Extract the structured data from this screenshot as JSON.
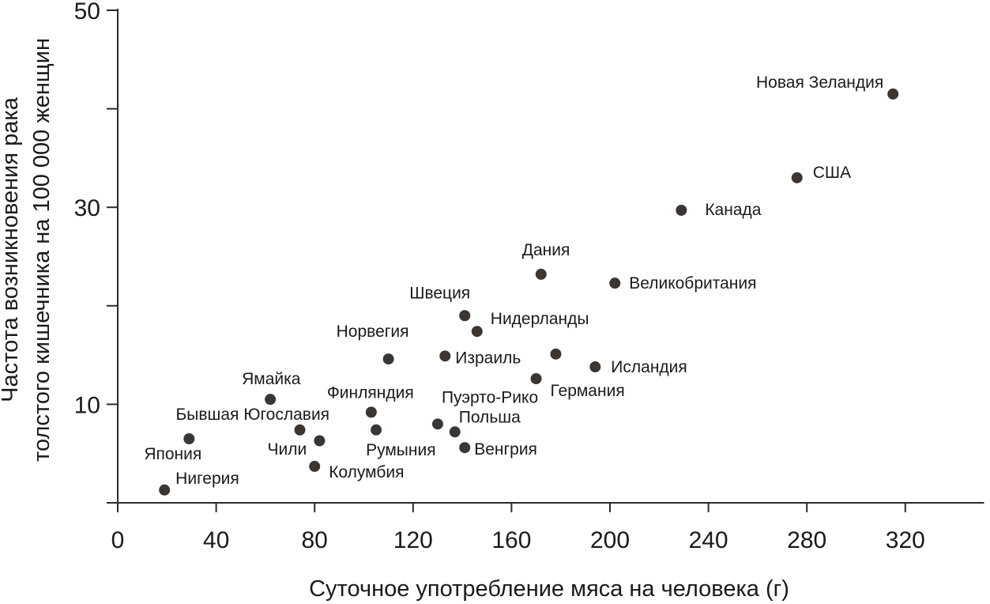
{
  "chart_data": {
    "type": "scatter",
    "xlabel": "Суточное употребление мяса на человека (г)",
    "ylabel_lines": [
      "Частота возникновения рака",
      "толстого кишечника на 100 000 женщин"
    ],
    "xlim": [
      0,
      352
    ],
    "ylim": [
      0,
      50
    ],
    "xticks": [
      0,
      40,
      80,
      120,
      160,
      200,
      240,
      280,
      320
    ],
    "yticks": [
      10,
      30,
      50
    ],
    "ytick_marks": [
      0,
      10,
      20,
      30,
      40,
      50
    ],
    "grid": false,
    "points": [
      {
        "label": "Новая Зеландия",
        "x": 315,
        "y": 41.5
      },
      {
        "label": "США",
        "x": 276,
        "y": 33
      },
      {
        "label": "Канада",
        "x": 229,
        "y": 29.7
      },
      {
        "label": "Дания",
        "x": 172,
        "y": 23.2
      },
      {
        "label": "Великобритания",
        "x": 202,
        "y": 22.3
      },
      {
        "label": "Швеция",
        "x": 141,
        "y": 19
      },
      {
        "label": "Нидерланды",
        "x": 146,
        "y": 17.4
      },
      {
        "label": "Норвегия",
        "x": 110,
        "y": 14.6
      },
      {
        "label": "Израиль",
        "x": 133,
        "y": 14.9
      },
      {
        "label": "Исландия",
        "x": 194,
        "y": 13.8
      },
      {
        "label": "Германия",
        "x": 170,
        "y": 12.6
      },
      {
        "label": "",
        "x": 178,
        "y": 15.1
      },
      {
        "label": "Ямайка",
        "x": 62,
        "y": 10.5
      },
      {
        "label": "Финляндия",
        "x": 103,
        "y": 9.2
      },
      {
        "label": "Пуэрто-Рико",
        "x": 130,
        "y": 8.0
      },
      {
        "label": "Польша",
        "x": 137,
        "y": 7.2
      },
      {
        "label": "Бывшая Югославия",
        "x": 74,
        "y": 7.4
      },
      {
        "label": "",
        "x": 82,
        "y": 6.3
      },
      {
        "label": "",
        "x": 105,
        "y": 7.4
      },
      {
        "label": "Япония",
        "x": 29,
        "y": 6.5
      },
      {
        "label": "Чили",
        "x": 74,
        "y": 7.4,
        "hidden_dot": true
      },
      {
        "label": "Румыния",
        "x": 105,
        "y": 7.4,
        "hidden_dot": true
      },
      {
        "label": "Венгрия",
        "x": 141,
        "y": 5.6
      },
      {
        "label": "Колумбия",
        "x": 80,
        "y": 3.7
      },
      {
        "label": "Нигерия",
        "x": 19,
        "y": 1.3
      }
    ]
  }
}
